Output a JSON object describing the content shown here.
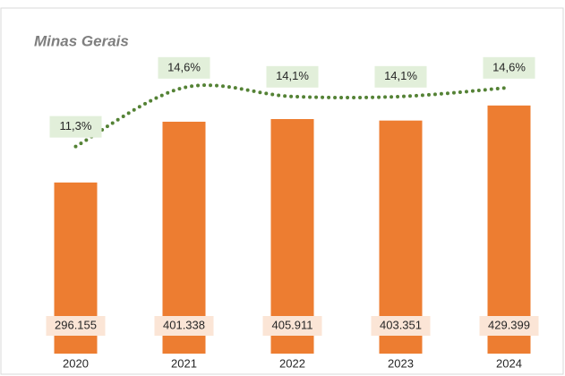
{
  "chart_data": {
    "type": "bar",
    "title": "Minas Gerais",
    "categories": [
      "2020",
      "2021",
      "2022",
      "2023",
      "2024"
    ],
    "series": [
      {
        "type": "bar",
        "color": "#ed7d31",
        "values": [
          296155,
          401338,
          405911,
          403351,
          429399
        ],
        "value_labels": [
          "296.155",
          "401.338",
          "405.911",
          "403.351",
          "429.399"
        ]
      },
      {
        "type": "line",
        "axis": "y2",
        "color": "#548235",
        "values": [
          11.3,
          14.6,
          14.1,
          14.1,
          14.6
        ],
        "value_labels": [
          "11,3%",
          "14,6%",
          "14,1%",
          "14,1%",
          "14,6%"
        ]
      }
    ],
    "ylim": [
      0,
      550000
    ],
    "y2lim": [
      -0.3,
      17.5
    ]
  }
}
